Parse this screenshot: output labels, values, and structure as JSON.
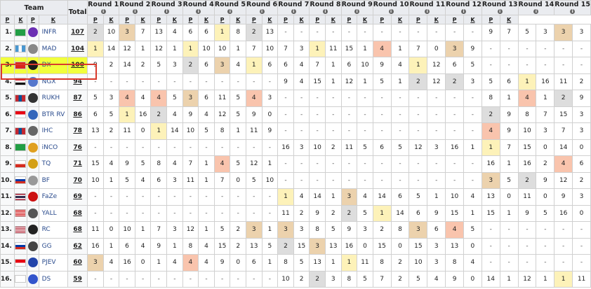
{
  "header": {
    "team": "Team",
    "total": "Total",
    "rounds": [
      "Round 1",
      "Round 2",
      "Round 3",
      "Round 4",
      "Round 5",
      "Round 6",
      "Round 7",
      "Round 8",
      "Round 9",
      "Round 10",
      "Round 11",
      "Round 12",
      "Round 13",
      "Round 14",
      "Round 15"
    ],
    "sub_p": "P",
    "sub_k": "K",
    "info_glyph": "i"
  },
  "colors": {
    "gold": "#fdf2b9",
    "silver": "#dddddd",
    "bronze": "#ecd2ad",
    "salmon": "#f9c4ad",
    "highlight": "#f1ff3c",
    "highlight_border": "#d83a2c"
  },
  "highlight_rank": "3.",
  "teams": [
    {
      "rank": "1.",
      "flag": "flag-brazil",
      "logo": "infr-logo",
      "logo_color": "#6b2fb3",
      "name": "INFR",
      "total": "107",
      "scores": [
        "2",
        "10",
        "3",
        "7",
        "13",
        "4",
        "6",
        "6",
        "1",
        "8",
        "2",
        "13",
        "-",
        "-",
        "-",
        "-",
        "-",
        "-",
        "-",
        "-",
        "-",
        "-",
        "-",
        "-",
        "9",
        "7",
        "5",
        "3",
        "3",
        "3"
      ],
      "marks": [
        "silver",
        "",
        "bronze",
        "",
        "",
        "",
        "",
        "",
        "gold",
        "",
        "silver",
        "",
        "",
        "",
        "",
        "",
        "",
        "",
        "",
        "",
        "",
        "",
        "",
        "",
        "",
        "",
        "",
        "",
        "bronze",
        ""
      ]
    },
    {
      "rank": "2.",
      "flag": "flag-guatemala",
      "logo": "mad-logo",
      "logo_color": "#888888",
      "name": "MAD",
      "total": "104",
      "scores": [
        "1",
        "14",
        "12",
        "1",
        "12",
        "1",
        "1",
        "10",
        "10",
        "1",
        "7",
        "10",
        "7",
        "3",
        "1",
        "11",
        "15",
        "1",
        "4",
        "1",
        "7",
        "0",
        "3",
        "9",
        "-",
        "-",
        "-",
        "-",
        "-",
        "-"
      ],
      "marks": [
        "gold",
        "",
        "",
        "",
        "",
        "",
        "gold",
        "",
        "",
        "",
        "",
        "",
        "",
        "",
        "gold",
        "",
        "",
        "",
        "salmon",
        "",
        "",
        "",
        "bronze",
        "",
        "",
        "",
        "",
        "",
        "",
        ""
      ]
    },
    {
      "rank": "3.",
      "flag": "flag-vietnam",
      "logo": "dx-logo",
      "logo_color": "#1a1a1a",
      "name": "DX",
      "total": "100",
      "scores": [
        "9",
        "2",
        "14",
        "2",
        "5",
        "3",
        "2",
        "6",
        "3",
        "4",
        "1",
        "6",
        "6",
        "4",
        "7",
        "1",
        "6",
        "10",
        "9",
        "4",
        "1",
        "12",
        "6",
        "5",
        "-",
        "-",
        "-",
        "-",
        "-",
        "-"
      ],
      "marks": [
        "",
        "",
        "",
        "",
        "",
        "",
        "silver",
        "",
        "bronze",
        "",
        "gold",
        "",
        "",
        "",
        "",
        "",
        "",
        "",
        "",
        "",
        "gold",
        "",
        "",
        "",
        "",
        "",
        "",
        "",
        "",
        ""
      ]
    },
    {
      "rank": "4.",
      "flag": "flag-egypt",
      "logo": "ngx-logo",
      "logo_color": "#5577cc",
      "name": "NGX",
      "total": "94",
      "scores": [
        "-",
        "-",
        "-",
        "-",
        "-",
        "-",
        "-",
        "-",
        "-",
        "-",
        "-",
        "-",
        "9",
        "4",
        "15",
        "1",
        "12",
        "1",
        "5",
        "1",
        "2",
        "12",
        "2",
        "3",
        "5",
        "6",
        "1",
        "16",
        "11",
        "2"
      ],
      "marks": [
        "",
        "",
        "",
        "",
        "",
        "",
        "",
        "",
        "",
        "",
        "",
        "",
        "",
        "",
        "",
        "",
        "",
        "",
        "",
        "",
        "silver",
        "",
        "silver",
        "",
        "",
        "",
        "gold",
        "",
        "",
        ""
      ]
    },
    {
      "rank": "5.",
      "flag": "flag-mongolia",
      "logo": "rukh-logo",
      "logo_color": "#333333",
      "name": "RUKH",
      "total": "87",
      "scores": [
        "5",
        "3",
        "4",
        "4",
        "4",
        "5",
        "3",
        "6",
        "11",
        "5",
        "4",
        "3",
        "-",
        "-",
        "-",
        "-",
        "-",
        "-",
        "-",
        "-",
        "-",
        "-",
        "-",
        "-",
        "8",
        "1",
        "4",
        "1",
        "2",
        "9"
      ],
      "marks": [
        "",
        "",
        "salmon",
        "",
        "salmon",
        "",
        "bronze",
        "",
        "",
        "",
        "salmon",
        "",
        "",
        "",
        "",
        "",
        "",
        "",
        "",
        "",
        "",
        "",
        "",
        "",
        "",
        "",
        "salmon",
        "",
        "silver",
        ""
      ]
    },
    {
      "rank": "6.",
      "flag": "flag-indonesia",
      "logo": "btr-logo",
      "logo_color": "#3366bb",
      "name": "BTR RV",
      "total": "86",
      "scores": [
        "6",
        "5",
        "1",
        "16",
        "2",
        "4",
        "9",
        "4",
        "12",
        "5",
        "9",
        "0",
        "-",
        "-",
        "-",
        "-",
        "-",
        "-",
        "-",
        "-",
        "-",
        "-",
        "-",
        "-",
        "2",
        "9",
        "8",
        "7",
        "15",
        "3"
      ],
      "marks": [
        "",
        "",
        "gold",
        "",
        "silver",
        "",
        "",
        "",
        "",
        "",
        "",
        "",
        "",
        "",
        "",
        "",
        "",
        "",
        "",
        "",
        "",
        "",
        "",
        "",
        "silver",
        "",
        "",
        "",
        "",
        ""
      ]
    },
    {
      "rank": "7.",
      "flag": "flag-mongolia",
      "logo": "ihc-logo",
      "logo_color": "#666666",
      "name": "IHC",
      "total": "78",
      "scores": [
        "13",
        "2",
        "11",
        "0",
        "1",
        "14",
        "10",
        "5",
        "8",
        "1",
        "11",
        "9",
        "-",
        "-",
        "-",
        "-",
        "-",
        "-",
        "-",
        "-",
        "-",
        "-",
        "-",
        "-",
        "4",
        "9",
        "10",
        "3",
        "7",
        "3"
      ],
      "marks": [
        "",
        "",
        "",
        "",
        "gold",
        "",
        "",
        "",
        "",
        "",
        "",
        "",
        "",
        "",
        "",
        "",
        "",
        "",
        "",
        "",
        "",
        "",
        "",
        "",
        "salmon",
        "",
        "",
        "",
        "",
        ""
      ]
    },
    {
      "rank": "8.",
      "flag": "flag-brazil",
      "logo": "inco-logo",
      "logo_color": "#e0a020",
      "name": "iNCO",
      "total": "76",
      "scores": [
        "-",
        "-",
        "-",
        "-",
        "-",
        "-",
        "-",
        "-",
        "-",
        "-",
        "-",
        "-",
        "16",
        "3",
        "10",
        "2",
        "11",
        "5",
        "6",
        "5",
        "12",
        "3",
        "16",
        "1",
        "1",
        "7",
        "15",
        "0",
        "14",
        "0"
      ],
      "marks": [
        "",
        "",
        "",
        "",
        "",
        "",
        "",
        "",
        "",
        "",
        "",
        "",
        "",
        "",
        "",
        "",
        "",
        "",
        "",
        "",
        "",
        "",
        "",
        "",
        "gold",
        "",
        "",
        "",
        "",
        ""
      ]
    },
    {
      "rank": "9.",
      "flag": "flag-chile",
      "logo": "tq-logo",
      "logo_color": "#d4a017",
      "name": "TQ",
      "total": "71",
      "scores": [
        "15",
        "4",
        "9",
        "5",
        "8",
        "4",
        "7",
        "1",
        "4",
        "5",
        "12",
        "1",
        "-",
        "-",
        "-",
        "-",
        "-",
        "-",
        "-",
        "-",
        "-",
        "-",
        "-",
        "-",
        "16",
        "1",
        "16",
        "2",
        "4",
        "6"
      ],
      "marks": [
        "",
        "",
        "",
        "",
        "",
        "",
        "",
        "",
        "salmon",
        "",
        "",
        "",
        "",
        "",
        "",
        "",
        "",
        "",
        "",
        "",
        "",
        "",
        "",
        "",
        "",
        "",
        "",
        "",
        "salmon",
        ""
      ]
    },
    {
      "rank": "10.",
      "flag": "flag-russia",
      "logo": "bf-logo",
      "logo_color": "#999999",
      "name": "BF",
      "total": "70",
      "scores": [
        "10",
        "1",
        "5",
        "4",
        "6",
        "3",
        "11",
        "1",
        "7",
        "0",
        "5",
        "10",
        "-",
        "-",
        "-",
        "-",
        "-",
        "-",
        "-",
        "-",
        "-",
        "-",
        "-",
        "-",
        "3",
        "5",
        "2",
        "9",
        "12",
        "2"
      ],
      "marks": [
        "",
        "",
        "",
        "",
        "",
        "",
        "",
        "",
        "",
        "",
        "",
        "",
        "",
        "",
        "",
        "",
        "",
        "",
        "",
        "",
        "",
        "",
        "",
        "",
        "bronze",
        "",
        "silver",
        "",
        "",
        ""
      ]
    },
    {
      "rank": "11.",
      "flag": "flag-thailand",
      "logo": "faze-logo",
      "logo_color": "#cc1111",
      "name": "FaZe",
      "total": "69",
      "scores": [
        "-",
        "-",
        "-",
        "-",
        "-",
        "-",
        "-",
        "-",
        "-",
        "-",
        "-",
        "-",
        "1",
        "4",
        "14",
        "1",
        "3",
        "4",
        "14",
        "6",
        "5",
        "1",
        "10",
        "4",
        "13",
        "0",
        "11",
        "0",
        "9",
        "3"
      ],
      "marks": [
        "",
        "",
        "",
        "",
        "",
        "",
        "",
        "",
        "",
        "",
        "",
        "",
        "gold",
        "",
        "",
        "",
        "bronze",
        "",
        "",
        "",
        "",
        "",
        "",
        "",
        "",
        "",
        "",
        "",
        "",
        ""
      ]
    },
    {
      "rank": "12.",
      "flag": "flag-malaysia",
      "logo": "yall-logo",
      "logo_color": "#555555",
      "name": "YALL",
      "total": "68",
      "scores": [
        "-",
        "-",
        "-",
        "-",
        "-",
        "-",
        "-",
        "-",
        "-",
        "-",
        "-",
        "-",
        "11",
        "2",
        "9",
        "2",
        "2",
        "5",
        "1",
        "14",
        "6",
        "9",
        "15",
        "1",
        "15",
        "1",
        "9",
        "5",
        "16",
        "0"
      ],
      "marks": [
        "",
        "",
        "",
        "",
        "",
        "",
        "",
        "",
        "",
        "",
        "",
        "",
        "",
        "",
        "",
        "",
        "silver",
        "",
        "gold",
        "",
        "",
        "",
        "",
        "",
        "",
        "",
        "",
        "",
        "",
        ""
      ]
    },
    {
      "rank": "13.",
      "flag": "flag-usa",
      "logo": "rc-logo",
      "logo_color": "#222222",
      "name": "RC",
      "total": "68",
      "scores": [
        "11",
        "0",
        "10",
        "1",
        "7",
        "3",
        "12",
        "1",
        "5",
        "2",
        "3",
        "1",
        "3",
        "3",
        "8",
        "5",
        "9",
        "3",
        "2",
        "8",
        "3",
        "6",
        "4",
        "5",
        "-",
        "-",
        "-",
        "-",
        "-",
        "-"
      ],
      "marks": [
        "",
        "",
        "",
        "",
        "",
        "",
        "",
        "",
        "",
        "",
        "bronze",
        "",
        "bronze",
        "",
        "",
        "",
        "",
        "",
        "",
        "",
        "bronze",
        "",
        "salmon",
        "",
        "",
        "",
        "",
        "",
        "",
        ""
      ]
    },
    {
      "rank": "14.",
      "flag": "flag-russia",
      "logo": "gg-logo",
      "logo_color": "#444444",
      "name": "GG",
      "total": "62",
      "scores": [
        "16",
        "1",
        "6",
        "4",
        "9",
        "1",
        "8",
        "4",
        "15",
        "2",
        "13",
        "5",
        "2",
        "15",
        "3",
        "13",
        "16",
        "0",
        "15",
        "0",
        "15",
        "3",
        "13",
        "0",
        "-",
        "-",
        "-",
        "-",
        "-",
        "-"
      ],
      "marks": [
        "",
        "",
        "",
        "",
        "",
        "",
        "",
        "",
        "",
        "",
        "",
        "",
        "silver",
        "",
        "bronze",
        "",
        "",
        "",
        "",
        "",
        "",
        "",
        "",
        "",
        "",
        "",
        "",
        "",
        "",
        ""
      ]
    },
    {
      "rank": "15.",
      "flag": "flag-indonesia",
      "logo": "pjev-logo",
      "logo_color": "#2244aa",
      "name": "PJEV",
      "total": "60",
      "scores": [
        "3",
        "4",
        "16",
        "0",
        "1",
        "4",
        "4",
        "4",
        "9",
        "0",
        "6",
        "1",
        "8",
        "5",
        "13",
        "1",
        "1",
        "11",
        "8",
        "2",
        "10",
        "3",
        "8",
        "4",
        "-",
        "-",
        "-",
        "-",
        "-",
        "-"
      ],
      "marks": [
        "bronze",
        "",
        "",
        "",
        "",
        "",
        "salmon",
        "",
        "",
        "",
        "",
        "",
        "",
        "",
        "",
        "",
        "gold",
        "",
        "",
        "",
        "",
        "",
        "",
        "",
        "",
        "",
        "",
        "",
        "",
        ""
      ]
    },
    {
      "rank": "16.",
      "flag": "flag-south-korea",
      "logo": "ds-logo",
      "logo_color": "#3355cc",
      "name": "DS",
      "total": "59",
      "scores": [
        "-",
        "-",
        "-",
        "-",
        "-",
        "-",
        "-",
        "-",
        "-",
        "-",
        "-",
        "-",
        "10",
        "2",
        "2",
        "3",
        "8",
        "5",
        "7",
        "2",
        "5",
        "4",
        "9",
        "0",
        "14",
        "1",
        "12",
        "1",
        "1",
        "11"
      ],
      "marks": [
        "",
        "",
        "",
        "",
        "",
        "",
        "",
        "",
        "",
        "",
        "",
        "",
        "",
        "",
        "silver",
        "",
        "",
        "",
        "",
        "",
        "",
        "",
        "",
        "",
        "",
        "",
        "",
        "",
        "gold",
        ""
      ]
    }
  ]
}
